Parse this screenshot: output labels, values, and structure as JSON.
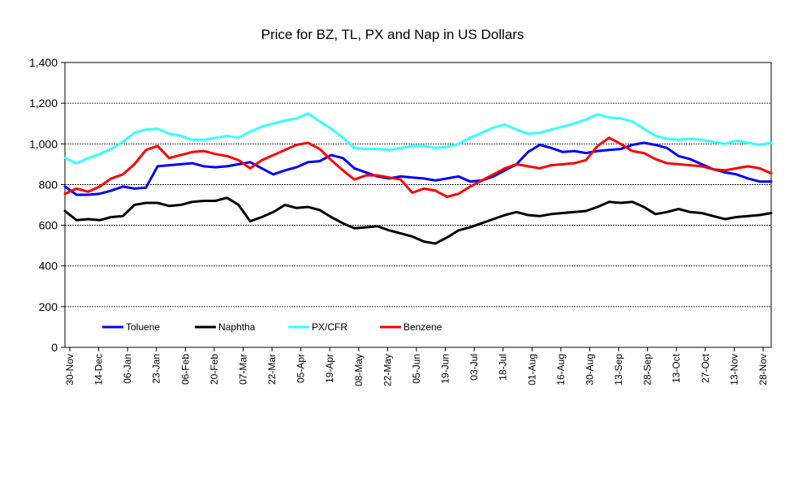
{
  "chart_data": {
    "type": "line",
    "title": "Price for BZ, TL, PX and Nap in US Dollars",
    "xlabel": "",
    "ylabel": "",
    "ylim": [
      0,
      1400
    ],
    "yticks": [
      0,
      200,
      400,
      600,
      800,
      1000,
      1200,
      1400
    ],
    "ytick_labels": [
      "0",
      "200",
      "400",
      "600",
      "800",
      "1,000",
      "1,200",
      "1,400"
    ],
    "x_tick_labels": [
      "30-Nov",
      "14-Dec",
      "06-Jan",
      "23-Jan",
      "06-Feb",
      "20-Feb",
      "07-Mar",
      "22-Mar",
      "05-Apr",
      "19-Apr",
      "08-May",
      "22-May",
      "05-Jun",
      "19-Jun",
      "03-Jul",
      "18-Jul",
      "01-Aug",
      "16-Aug",
      "30-Aug",
      "13-Sep",
      "28-Sep",
      "13-Oct",
      "27-Oct",
      "13-Nov",
      "28-Nov"
    ],
    "grid": "horizontal",
    "legend_position": "bottom-left",
    "series": [
      {
        "name": "Toluene",
        "color": "#0000ff",
        "values": [
          790,
          750,
          750,
          755,
          770,
          790,
          780,
          785,
          890,
          895,
          900,
          905,
          890,
          885,
          890,
          900,
          910,
          880,
          850,
          870,
          885,
          910,
          915,
          945,
          930,
          880,
          860,
          840,
          830,
          840,
          835,
          830,
          820,
          830,
          840,
          815,
          820,
          840,
          870,
          900,
          960,
          995,
          980,
          960,
          965,
          955,
          965,
          970,
          975,
          995,
          1005,
          995,
          980,
          940,
          925,
          900,
          875,
          860,
          850,
          830,
          815,
          815
        ]
      },
      {
        "name": "Naphtha",
        "color": "#000000",
        "values": [
          670,
          625,
          630,
          625,
          640,
          645,
          700,
          710,
          710,
          695,
          700,
          715,
          720,
          720,
          735,
          700,
          620,
          640,
          665,
          700,
          685,
          690,
          675,
          640,
          610,
          585,
          590,
          595,
          575,
          560,
          545,
          520,
          510,
          540,
          575,
          590,
          610,
          630,
          650,
          665,
          650,
          645,
          655,
          660,
          665,
          670,
          690,
          715,
          710,
          715,
          690,
          655,
          665,
          680,
          665,
          660,
          645,
          630,
          640,
          645,
          650,
          660
        ]
      },
      {
        "name": "PX/CFR",
        "color": "#33ffff",
        "values": [
          930,
          905,
          930,
          950,
          975,
          1010,
          1055,
          1070,
          1075,
          1050,
          1040,
          1020,
          1020,
          1030,
          1040,
          1030,
          1060,
          1085,
          1100,
          1115,
          1125,
          1150,
          1110,
          1075,
          1030,
          980,
          975,
          975,
          970,
          980,
          990,
          990,
          980,
          985,
          1000,
          1030,
          1055,
          1080,
          1095,
          1070,
          1050,
          1055,
          1070,
          1085,
          1100,
          1120,
          1145,
          1130,
          1125,
          1110,
          1075,
          1040,
          1025,
          1020,
          1025,
          1020,
          1010,
          1000,
          1015,
          1005,
          995,
          1005
        ]
      },
      {
        "name": "Benzene",
        "color": "#ff0000",
        "values": [
          755,
          780,
          765,
          790,
          830,
          850,
          900,
          970,
          990,
          930,
          945,
          960,
          965,
          950,
          940,
          920,
          880,
          920,
          945,
          970,
          995,
          1005,
          975,
          920,
          870,
          825,
          845,
          845,
          835,
          825,
          760,
          780,
          770,
          740,
          755,
          790,
          820,
          850,
          880,
          900,
          890,
          880,
          895,
          900,
          905,
          920,
          990,
          1030,
          1000,
          965,
          955,
          925,
          905,
          900,
          895,
          890,
          875,
          870,
          880,
          890,
          880,
          855
        ]
      }
    ]
  }
}
